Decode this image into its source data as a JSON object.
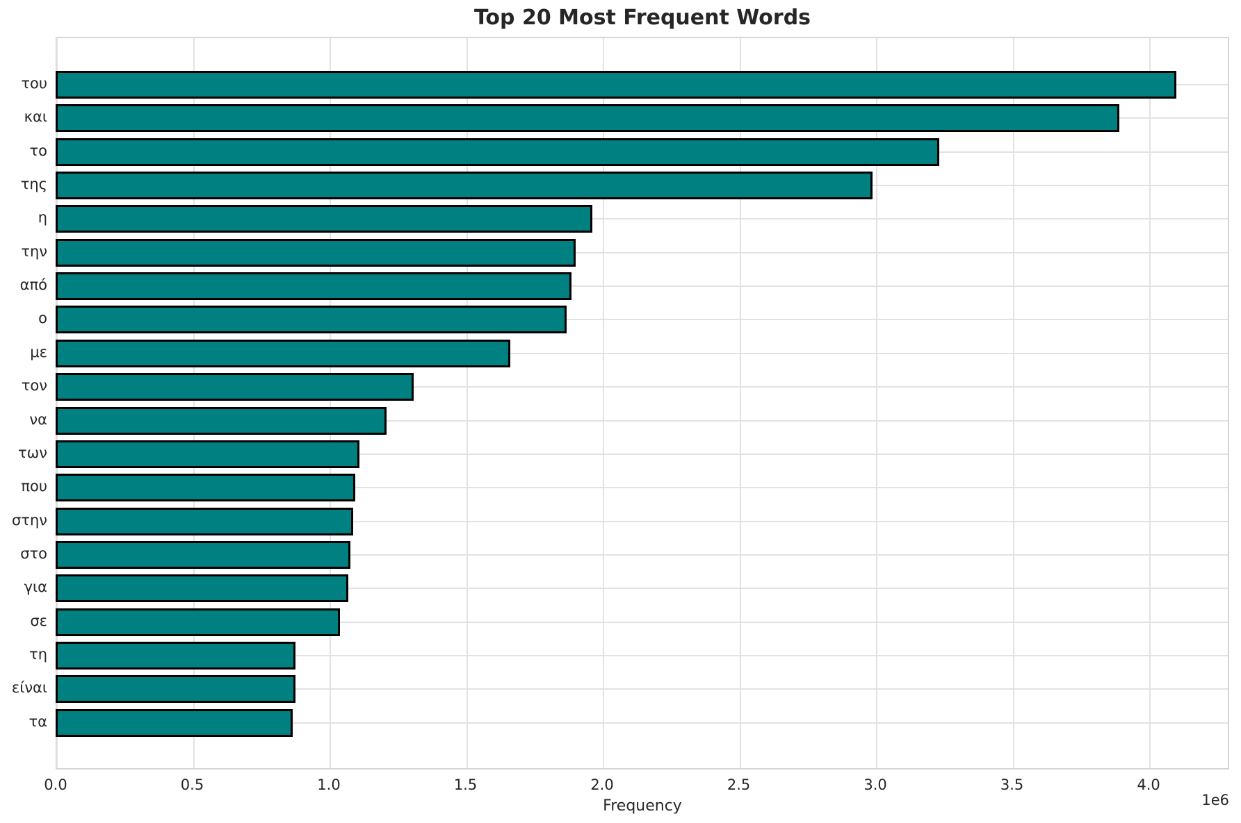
{
  "chart_data": {
    "type": "bar",
    "orientation": "horizontal",
    "title": "Top 20 Most Frequent Words",
    "xlabel": "Frequency",
    "x_offset_label": "1e6",
    "categories": [
      "του",
      "και",
      "το",
      "της",
      "η",
      "την",
      "από",
      "ο",
      "με",
      "τον",
      "να",
      "των",
      "που",
      "στην",
      "στο",
      "για",
      "σε",
      "τη",
      "είναι",
      "τα"
    ],
    "values": [
      4096000,
      3888000,
      3229000,
      2984000,
      1959000,
      1898000,
      1882000,
      1864000,
      1658000,
      1306000,
      1206000,
      1107000,
      1091000,
      1085000,
      1073000,
      1066000,
      1036000,
      873000,
      872000,
      862000
    ],
    "xticks": [
      0.0,
      0.5,
      1.0,
      1.5,
      2.0,
      2.5,
      3.0,
      3.5,
      4.0
    ],
    "xtick_labels": [
      "0.0",
      "0.5",
      "1.0",
      "1.5",
      "2.0",
      "2.5",
      "3.0",
      "3.5",
      "4.0"
    ],
    "xlim": [
      0,
      4295000
    ],
    "xtick_unit": 1000000,
    "grid": true,
    "legend": false,
    "colors": {
      "bar_fill": "#008080",
      "bar_edge": "#000000",
      "grid": "#e2e2e2",
      "spine": "#d5d5d5",
      "text": "#262626",
      "background": "#ffffff"
    }
  }
}
